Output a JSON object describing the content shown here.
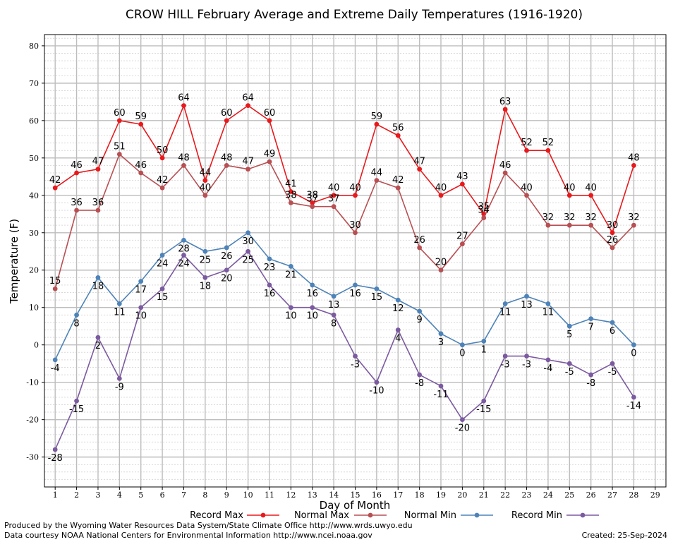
{
  "chart_data": {
    "type": "line",
    "title": "CROW HILL February Average and Extreme Daily Temperatures (1916-1920)",
    "xlabel": "Day of Month",
    "ylabel": "Temperature (F)",
    "xlim": [
      0.5,
      29.5
    ],
    "ylim": [
      -38,
      83
    ],
    "x_ticks": [
      1,
      2,
      3,
      4,
      5,
      6,
      7,
      8,
      9,
      10,
      11,
      12,
      13,
      14,
      15,
      16,
      17,
      18,
      19,
      20,
      21,
      22,
      23,
      24,
      25,
      26,
      27,
      28,
      29
    ],
    "y_ticks": [
      -30,
      -20,
      -10,
      0,
      10,
      20,
      30,
      40,
      50,
      60,
      70,
      80
    ],
    "grid": true,
    "x": [
      1,
      2,
      3,
      4,
      5,
      6,
      7,
      8,
      9,
      10,
      11,
      12,
      13,
      14,
      15,
      16,
      17,
      18,
      19,
      20,
      21,
      22,
      23,
      24,
      25,
      26,
      27,
      28
    ],
    "series": [
      {
        "name": "Record Max",
        "color": "#e8191c",
        "label_pos": "above",
        "values": [
          42,
          46,
          47,
          60,
          59,
          50,
          64,
          44,
          60,
          64,
          60,
          41,
          38,
          40,
          40,
          59,
          56,
          47,
          40,
          43,
          35,
          63,
          52,
          52,
          40,
          40,
          30,
          48
        ]
      },
      {
        "name": "Normal Max",
        "color": "#b84f52",
        "label_pos": "above",
        "values": [
          15,
          36,
          36,
          51,
          46,
          42,
          48,
          40,
          48,
          47,
          49,
          38,
          37,
          37,
          30,
          44,
          42,
          26,
          20,
          27,
          34,
          46,
          40,
          32,
          32,
          32,
          26,
          32
        ]
      },
      {
        "name": "Normal Min",
        "color": "#4d83b8",
        "label_pos": "below",
        "values": [
          -4,
          8,
          18,
          11,
          17,
          24,
          28,
          25,
          26,
          30,
          23,
          21,
          16,
          13,
          16,
          15,
          12,
          9,
          3,
          0,
          1,
          11,
          13,
          11,
          5,
          7,
          6,
          0
        ]
      },
      {
        "name": "Record Min",
        "color": "#7b5aa0",
        "label_pos": "below",
        "values": [
          -28,
          -15,
          2,
          -9,
          10,
          15,
          24,
          18,
          20,
          25,
          16,
          10,
          10,
          8,
          -3,
          -10,
          4,
          -8,
          -11,
          -20,
          -15,
          -3,
          -3,
          -4,
          -5,
          -8,
          -5,
          -14
        ]
      }
    ]
  },
  "footer": {
    "produced_by": "Produced by the Wyoming Water Resources Data System/State Climate Office http://www.wrds.uwyo.edu",
    "courtesy": "Data courtesy NOAA National Centers for Environmental Information http://www.ncei.noaa.gov",
    "created": "Created:  25-Sep-2024"
  }
}
